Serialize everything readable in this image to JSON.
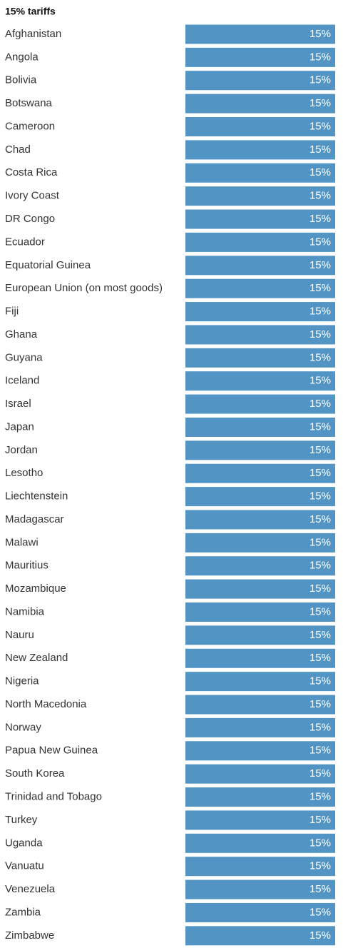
{
  "chart_data": {
    "type": "hbar",
    "title": "15% tariffs",
    "categories": [
      "Afghanistan",
      "Angola",
      "Bolivia",
      "Botswana",
      "Cameroon",
      "Chad",
      "Costa Rica",
      "Ivory Coast",
      "DR Congo",
      "Ecuador",
      "Equatorial Guinea",
      "European Union (on most goods)",
      "Fiji",
      "Ghana",
      "Guyana",
      "Iceland",
      "Israel",
      "Japan",
      "Jordan",
      "Lesotho",
      "Liechtenstein",
      "Madagascar",
      "Malawi",
      "Mauritius",
      "Mozambique",
      "Namibia",
      "Nauru",
      "New Zealand",
      "Nigeria",
      "North Macedonia",
      "Norway",
      "Papua New Guinea",
      "South Korea",
      "Trinidad and Tobago",
      "Turkey",
      "Uganda",
      "Vanuatu",
      "Venezuela",
      "Zambia",
      "Zimbabwe"
    ],
    "values": [
      15,
      15,
      15,
      15,
      15,
      15,
      15,
      15,
      15,
      15,
      15,
      15,
      15,
      15,
      15,
      15,
      15,
      15,
      15,
      15,
      15,
      15,
      15,
      15,
      15,
      15,
      15,
      15,
      15,
      15,
      15,
      15,
      15,
      15,
      15,
      15,
      15,
      15,
      15,
      15
    ],
    "value_labels": [
      "15%",
      "15%",
      "15%",
      "15%",
      "15%",
      "15%",
      "15%",
      "15%",
      "15%",
      "15%",
      "15%",
      "15%",
      "15%",
      "15%",
      "15%",
      "15%",
      "15%",
      "15%",
      "15%",
      "15%",
      "15%",
      "15%",
      "15%",
      "15%",
      "15%",
      "15%",
      "15%",
      "15%",
      "15%",
      "15%",
      "15%",
      "15%",
      "15%",
      "15%",
      "15%",
      "15%",
      "15%",
      "15%",
      "15%",
      "15%"
    ],
    "color": "#5294c4"
  }
}
